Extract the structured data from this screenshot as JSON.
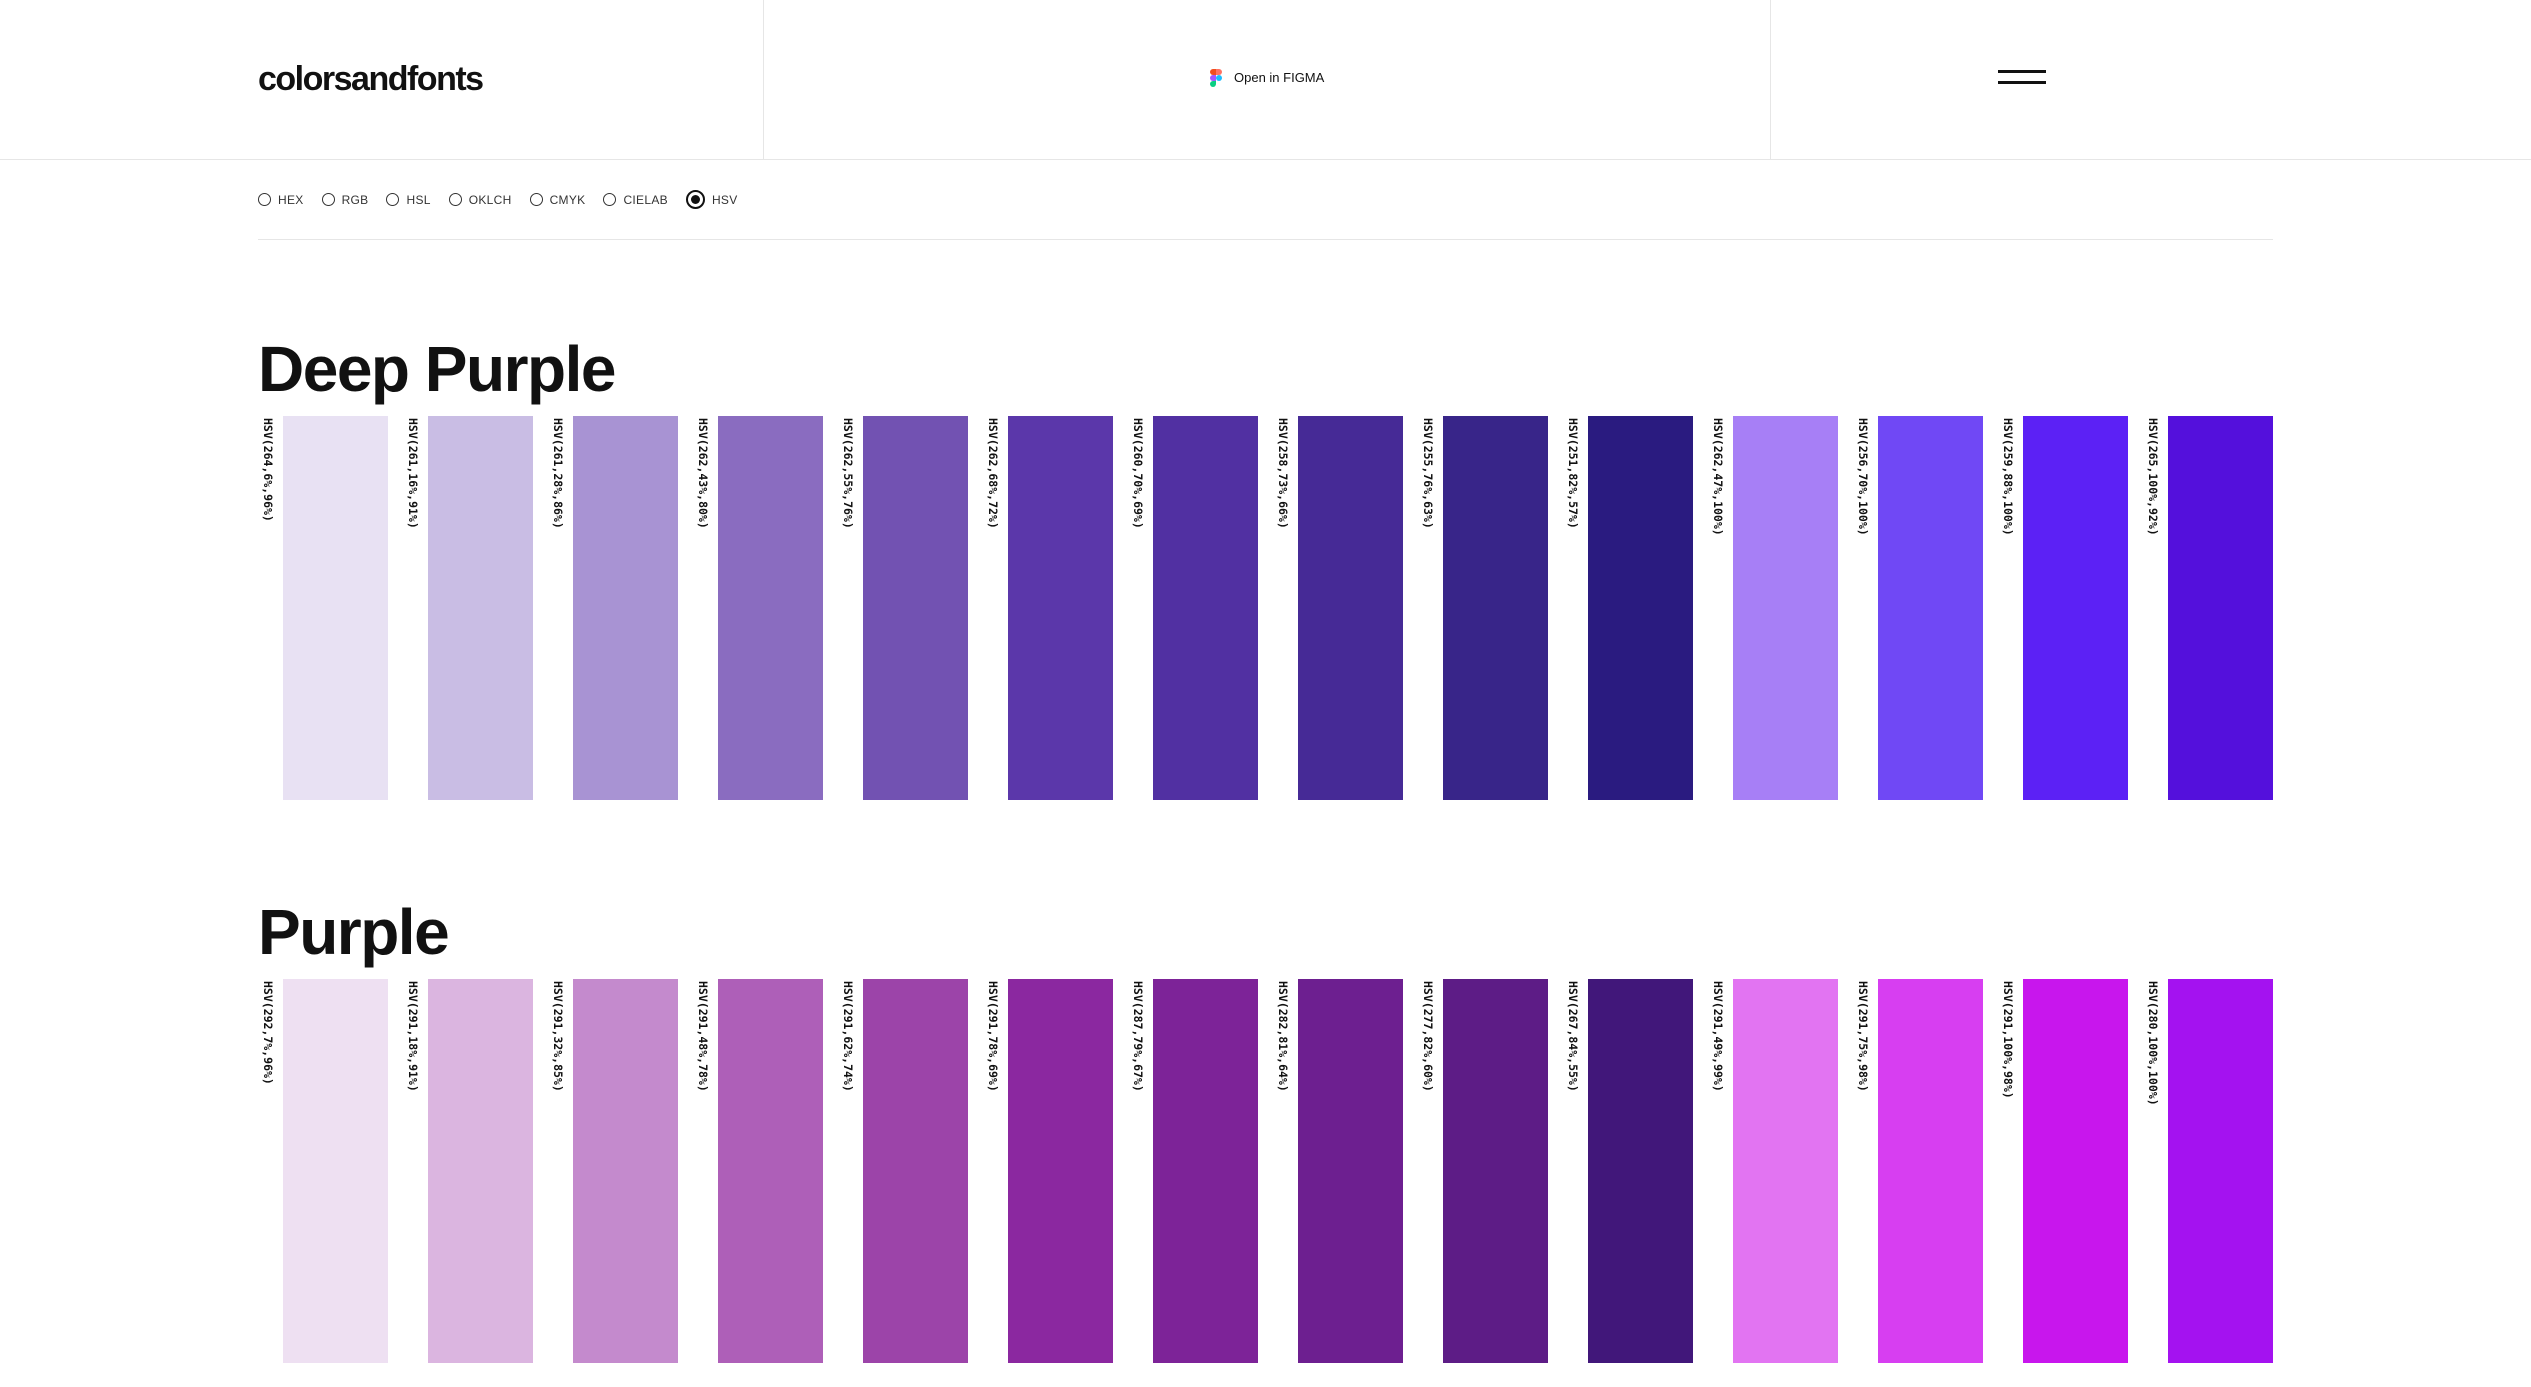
{
  "header": {
    "logo": "colorsandfonts",
    "figma_label": "Open in FIGMA"
  },
  "formats": {
    "options": [
      "HEX",
      "RGB",
      "HSL",
      "OKLCH",
      "CMYK",
      "CIELAB",
      "HSV"
    ],
    "selected": "HSV"
  },
  "palettes": [
    {
      "name": "Deep Purple",
      "swatches": [
        {
          "code": "HSV(264,6%,96%)",
          "color": "#e8e1f3"
        },
        {
          "code": "HSV(261,16%,91%)",
          "color": "#c9bde4"
        },
        {
          "code": "HSV(261,28%,86%)",
          "color": "#a893d3"
        },
        {
          "code": "HSV(262,43%,80%)",
          "color": "#8a6cc0"
        },
        {
          "code": "HSV(262,55%,76%)",
          "color": "#7252b2"
        },
        {
          "code": "HSV(262,68%,72%)",
          "color": "#5b37aa"
        },
        {
          "code": "HSV(260,70%,69%)",
          "color": "#5130a2"
        },
        {
          "code": "HSV(258,73%,66%)",
          "color": "#462a96"
        },
        {
          "code": "HSV(255,76%,63%)",
          "color": "#382589"
        },
        {
          "code": "HSV(251,82%,57%)",
          "color": "#2a1b80"
        },
        {
          "code": "HSV(262,47%,100%)",
          "color": "#a77ff6"
        },
        {
          "code": "HSV(256,70%,100%)",
          "color": "#7048f5"
        },
        {
          "code": "HSV(259,88%,100%)",
          "color": "#5c21f5"
        },
        {
          "code": "HSV(265,100%,92%)",
          "color": "#5410dc"
        }
      ]
    },
    {
      "name": "Purple",
      "swatches": [
        {
          "code": "HSV(292,7%,96%)",
          "color": "#eee0f2"
        },
        {
          "code": "HSV(291,18%,91%)",
          "color": "#dbb5e0"
        },
        {
          "code": "HSV(291,32%,85%)",
          "color": "#c48acd"
        },
        {
          "code": "HSV(291,48%,78%)",
          "color": "#ae5fb8"
        },
        {
          "code": "HSV(291,62%,74%)",
          "color": "#9c44a9"
        },
        {
          "code": "HSV(291,78%,69%)",
          "color": "#8b28a0"
        },
        {
          "code": "HSV(287,79%,67%)",
          "color": "#7d2398"
        },
        {
          "code": "HSV(282,81%,64%)",
          "color": "#6d1f90"
        },
        {
          "code": "HSV(277,82%,60%)",
          "color": "#5d1c86"
        },
        {
          "code": "HSV(267,84%,55%)",
          "color": "#41177a"
        },
        {
          "code": "HSV(291,49%,99%)",
          "color": "#e274f2"
        },
        {
          "code": "HSV(291,75%,98%)",
          "color": "#d73ef1"
        },
        {
          "code": "HSV(291,100%,98%)",
          "color": "#c816ed"
        },
        {
          "code": "HSV(280,100%,100%)",
          "color": "#a412f0"
        }
      ]
    }
  ]
}
